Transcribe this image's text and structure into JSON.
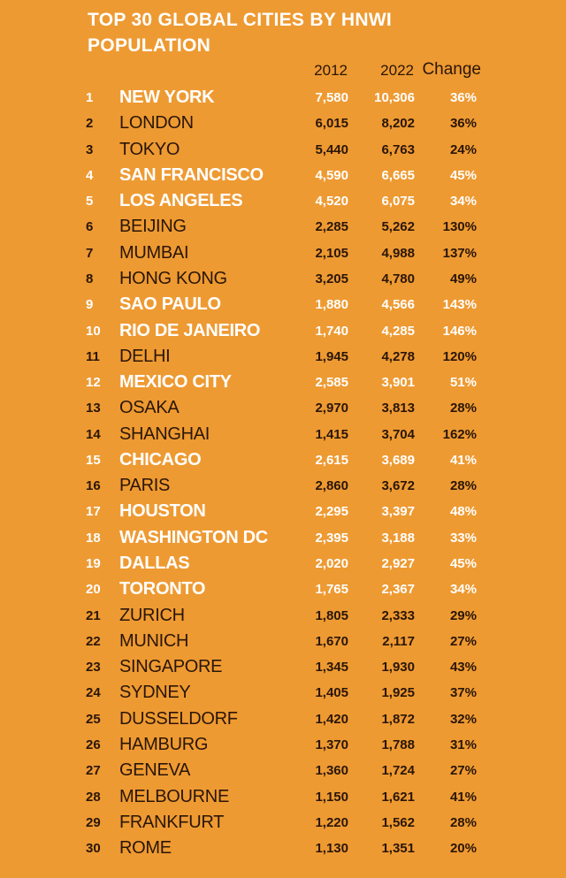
{
  "title": "TOP 30 GLOBAL CITIES BY HNWI POPULATION",
  "headers": {
    "y2012": "2012",
    "y2022": "2022",
    "change": "Change"
  },
  "colors": {
    "background": "#ee9a32",
    "highlight_text": "#ffffff",
    "normal_text": "#2a1608"
  },
  "rows": [
    {
      "rank": "1",
      "city": "NEW YORK",
      "y2012": "7,580",
      "y2022": "10,306",
      "change": "36%",
      "highlight": true
    },
    {
      "rank": "2",
      "city": "LONDON",
      "y2012": "6,015",
      "y2022": "8,202",
      "change": "36%",
      "highlight": false
    },
    {
      "rank": "3",
      "city": "TOKYO",
      "y2012": "5,440",
      "y2022": "6,763",
      "change": "24%",
      "highlight": false
    },
    {
      "rank": "4",
      "city": "SAN FRANCISCO",
      "y2012": "4,590",
      "y2022": "6,665",
      "change": "45%",
      "highlight": true
    },
    {
      "rank": "5",
      "city": "LOS ANGELES",
      "y2012": "4,520",
      "y2022": "6,075",
      "change": "34%",
      "highlight": true
    },
    {
      "rank": "6",
      "city": "BEIJING",
      "y2012": "2,285",
      "y2022": "5,262",
      "change": "130%",
      "highlight": false
    },
    {
      "rank": "7",
      "city": "MUMBAI",
      "y2012": "2,105",
      "y2022": "4,988",
      "change": "137%",
      "highlight": false
    },
    {
      "rank": "8",
      "city": "HONG KONG",
      "y2012": "3,205",
      "y2022": "4,780",
      "change": "49%",
      "highlight": false
    },
    {
      "rank": "9",
      "city": "SAO PAULO",
      "y2012": "1,880",
      "y2022": "4,566",
      "change": "143%",
      "highlight": true
    },
    {
      "rank": "10",
      "city": "RIO DE JANEIRO",
      "y2012": "1,740",
      "y2022": "4,285",
      "change": "146%",
      "highlight": true
    },
    {
      "rank": "11",
      "city": "DELHI",
      "y2012": "1,945",
      "y2022": "4,278",
      "change": "120%",
      "highlight": false
    },
    {
      "rank": "12",
      "city": "MEXICO CITY",
      "y2012": "2,585",
      "y2022": "3,901",
      "change": "51%",
      "highlight": true
    },
    {
      "rank": "13",
      "city": "OSAKA",
      "y2012": "2,970",
      "y2022": "3,813",
      "change": "28%",
      "highlight": false
    },
    {
      "rank": "14",
      "city": "SHANGHAI",
      "y2012": "1,415",
      "y2022": "3,704",
      "change": "162%",
      "highlight": false
    },
    {
      "rank": "15",
      "city": "CHICAGO",
      "y2012": "2,615",
      "y2022": "3,689",
      "change": "41%",
      "highlight": true
    },
    {
      "rank": "16",
      "city": "PARIS",
      "y2012": "2,860",
      "y2022": "3,672",
      "change": "28%",
      "highlight": false
    },
    {
      "rank": "17",
      "city": "HOUSTON",
      "y2012": "2,295",
      "y2022": "3,397",
      "change": "48%",
      "highlight": true
    },
    {
      "rank": "18",
      "city": "WASHINGTON DC",
      "y2012": "2,395",
      "y2022": "3,188",
      "change": "33%",
      "highlight": true
    },
    {
      "rank": "19",
      "city": "DALLAS",
      "y2012": "2,020",
      "y2022": "2,927",
      "change": "45%",
      "highlight": true
    },
    {
      "rank": "20",
      "city": "TORONTO",
      "y2012": "1,765",
      "y2022": "2,367",
      "change": "34%",
      "highlight": true
    },
    {
      "rank": "21",
      "city": "ZURICH",
      "y2012": "1,805",
      "y2022": "2,333",
      "change": "29%",
      "highlight": false
    },
    {
      "rank": "22",
      "city": "MUNICH",
      "y2012": "1,670",
      "y2022": "2,117",
      "change": "27%",
      "highlight": false
    },
    {
      "rank": "23",
      "city": "SINGAPORE",
      "y2012": "1,345",
      "y2022": "1,930",
      "change": "43%",
      "highlight": false
    },
    {
      "rank": "24",
      "city": "SYDNEY",
      "y2012": "1,405",
      "y2022": "1,925",
      "change": "37%",
      "highlight": false
    },
    {
      "rank": "25",
      "city": "DUSSELDORF",
      "y2012": "1,420",
      "y2022": "1,872",
      "change": "32%",
      "highlight": false
    },
    {
      "rank": "26",
      "city": "HAMBURG",
      "y2012": "1,370",
      "y2022": "1,788",
      "change": "31%",
      "highlight": false
    },
    {
      "rank": "27",
      "city": "GENEVA",
      "y2012": "1,360",
      "y2022": "1,724",
      "change": "27%",
      "highlight": false
    },
    {
      "rank": "28",
      "city": "MELBOURNE",
      "y2012": "1,150",
      "y2022": "1,621",
      "change": "41%",
      "highlight": false
    },
    {
      "rank": "29",
      "city": "FRANKFURT",
      "y2012": "1,220",
      "y2022": "1,562",
      "change": "28%",
      "highlight": false
    },
    {
      "rank": "30",
      "city": "ROME",
      "y2012": "1,130",
      "y2022": "1,351",
      "change": "20%",
      "highlight": false
    }
  ]
}
